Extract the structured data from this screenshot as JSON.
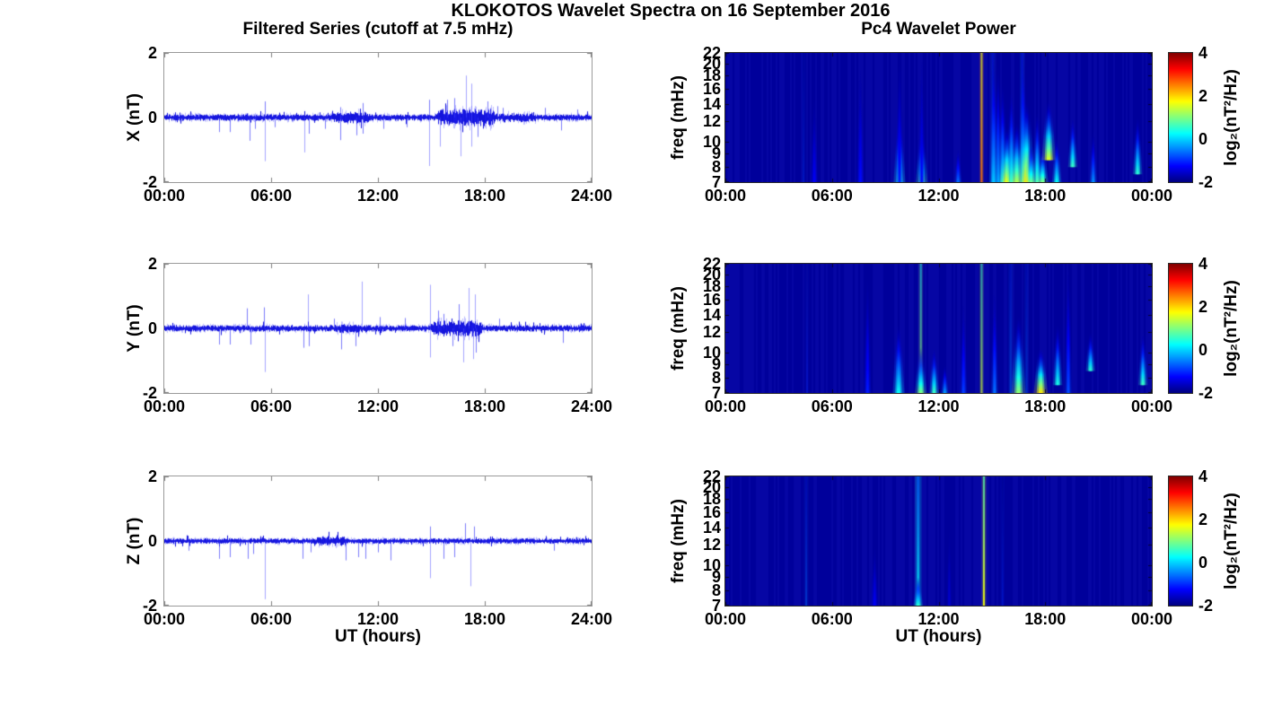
{
  "figure_title": "KLOKOTOS Wavelet Spectra on 16 September 2016",
  "left_column": {
    "title": "Filtered Series (cutoff at 7.5 mHz)",
    "xlabel": "UT (hours)",
    "x_tick_labels": [
      "00:00",
      "06:00",
      "12:00",
      "18:00",
      "24:00"
    ],
    "x_tick_hours": [
      0,
      6,
      12,
      18,
      24
    ],
    "y_tick_labels": [
      "2",
      "0",
      "-2"
    ],
    "y_tick_values": [
      2,
      0,
      -2
    ],
    "rows": [
      {
        "ylabel": "X (nT)"
      },
      {
        "ylabel": "Y (nT)"
      },
      {
        "ylabel": "Z (nT)"
      }
    ]
  },
  "right_column": {
    "title": "Pc4 Wavelet Power",
    "xlabel": "UT (hours)",
    "ylabel": "freq (mHz)",
    "x_tick_labels": [
      "00:00",
      "06:00",
      "12:00",
      "18:00",
      "00:00"
    ],
    "x_tick_hours": [
      0,
      6,
      12,
      18,
      24
    ],
    "freq_tick_labels": [
      "22",
      "20",
      "18",
      "16",
      "14",
      "12",
      "10",
      "9",
      "8",
      "7"
    ],
    "freq_tick_values": [
      22,
      20,
      18,
      16,
      14,
      12,
      10,
      9,
      8,
      7
    ],
    "colorbar": {
      "label": "log₂(nT²/Hz)",
      "tick_labels": [
        "4",
        "2",
        "0",
        "-2"
      ],
      "tick_values": [
        4,
        2,
        0,
        -2
      ],
      "colormap": "jet",
      "clim": [
        -2,
        4
      ]
    }
  },
  "chart_data": [
    {
      "type": "line",
      "series": "X",
      "title": "Filtered Series (cutoff at 7.5 mHz)",
      "ylabel": "X (nT)",
      "line_color": "#0000ff",
      "x_range_hours": [
        0,
        24
      ],
      "y_range_nT": [
        -2,
        2
      ],
      "noise_amp_nT": 0.06,
      "noise_bursts": [
        [
          9.3,
          11.6,
          0.05
        ],
        [
          15.2,
          18.7,
          0.1
        ],
        [
          18.7,
          21.0,
          0.03
        ]
      ],
      "spikes": [
        [
          3.1,
          -0.45
        ],
        [
          3.7,
          -0.45
        ],
        [
          4.8,
          -0.72
        ],
        [
          5.1,
          -0.35
        ],
        [
          5.65,
          -1.35
        ],
        [
          5.65,
          0.5
        ],
        [
          6.2,
          -0.3
        ],
        [
          7.85,
          -1.08
        ],
        [
          8.1,
          -0.5
        ],
        [
          9.0,
          -0.35
        ],
        [
          9.9,
          -0.7
        ],
        [
          9.9,
          0.32
        ],
        [
          10.8,
          -0.55
        ],
        [
          11.15,
          0.45
        ],
        [
          11.15,
          -0.5
        ],
        [
          12.3,
          -0.35
        ],
        [
          13.6,
          -0.3
        ],
        [
          14.85,
          -1.5
        ],
        [
          14.85,
          0.55
        ],
        [
          15.5,
          -0.9
        ],
        [
          15.9,
          0.55
        ],
        [
          16.3,
          0.6
        ],
        [
          16.65,
          -1.2
        ],
        [
          16.95,
          1.3
        ],
        [
          17.25,
          1.05
        ],
        [
          17.25,
          -0.9
        ],
        [
          17.6,
          -0.6
        ],
        [
          18.15,
          0.5
        ],
        [
          18.7,
          0.35
        ],
        [
          19.0,
          0.3
        ],
        [
          21.4,
          0.3
        ],
        [
          22.3,
          -0.4
        ],
        [
          23.2,
          0.25
        ]
      ]
    },
    {
      "type": "line",
      "series": "Y",
      "ylabel": "Y (nT)",
      "line_color": "#0000ff",
      "x_range_hours": [
        0,
        24
      ],
      "y_range_nT": [
        -2,
        2
      ],
      "noise_amp_nT": 0.06,
      "noise_bursts": [
        [
          9.5,
          11.5,
          0.03
        ],
        [
          14.9,
          17.9,
          0.09
        ]
      ],
      "spikes": [
        [
          3.1,
          -0.5
        ],
        [
          3.7,
          -0.5
        ],
        [
          4.65,
          0.62
        ],
        [
          4.85,
          -0.5
        ],
        [
          5.6,
          0.65
        ],
        [
          5.65,
          -1.35
        ],
        [
          7.8,
          -0.6
        ],
        [
          8.05,
          1.05
        ],
        [
          8.1,
          -0.55
        ],
        [
          9.55,
          0.3
        ],
        [
          9.95,
          -0.65
        ],
        [
          10.75,
          -0.55
        ],
        [
          11.1,
          1.45
        ],
        [
          12.1,
          0.35
        ],
        [
          13.5,
          0.32
        ],
        [
          14.9,
          1.35
        ],
        [
          14.9,
          -0.9
        ],
        [
          15.4,
          0.55
        ],
        [
          15.7,
          0.45
        ],
        [
          16.2,
          -0.55
        ],
        [
          16.55,
          0.75
        ],
        [
          16.8,
          -1.05
        ],
        [
          17.1,
          1.25
        ],
        [
          17.35,
          -0.95
        ],
        [
          17.45,
          1.05
        ],
        [
          17.5,
          -0.75
        ],
        [
          18.8,
          0.3
        ],
        [
          22.4,
          -0.45
        ]
      ]
    },
    {
      "type": "line",
      "series": "Z",
      "ylabel": "Z (nT)",
      "xlabel": "UT (hours)",
      "line_color": "#0000ff",
      "x_range_hours": [
        0,
        24
      ],
      "y_range_nT": [
        -2,
        2
      ],
      "noise_amp_nT": 0.05,
      "noise_bursts": [
        [
          8.4,
          10.3,
          0.04
        ]
      ],
      "spikes": [
        [
          1.35,
          -0.3
        ],
        [
          3.1,
          -0.55
        ],
        [
          3.7,
          -0.5
        ],
        [
          4.7,
          -0.55
        ],
        [
          5.0,
          -0.4
        ],
        [
          5.65,
          -1.8
        ],
        [
          7.75,
          -0.55
        ],
        [
          8.2,
          -0.35
        ],
        [
          10.2,
          -0.6
        ],
        [
          10.9,
          -0.5
        ],
        [
          11.3,
          -0.55
        ],
        [
          12.0,
          -0.35
        ],
        [
          12.7,
          -0.6
        ],
        [
          14.9,
          -1.15
        ],
        [
          14.9,
          0.45
        ],
        [
          15.7,
          -0.55
        ],
        [
          16.3,
          -0.5
        ],
        [
          16.9,
          0.55
        ],
        [
          17.2,
          -1.4
        ],
        [
          17.4,
          0.45
        ],
        [
          21.9,
          -0.3
        ]
      ]
    },
    {
      "type": "heatmap",
      "component": "X",
      "title": "Pc4 Wavelet Power",
      "ylabel": "freq (mHz)",
      "freq_range_mHz": [
        7,
        22
      ],
      "freq_scale": "log",
      "x_range_hours": [
        0,
        24
      ],
      "colormap": "jet",
      "clim_log2": [
        -2,
        4
      ],
      "background_log2": -1.8,
      "vertical_lines": [
        [
          4.4,
          -0.9,
          2,
          0.3
        ],
        [
          14.42,
          2.6,
          2,
          0.85
        ],
        [
          15.05,
          -0.4,
          2,
          0.45
        ],
        [
          16.7,
          -0.3,
          2,
          0.5
        ]
      ],
      "plumes": [
        [
          5.0,
          15,
          7,
          -1.3,
          3
        ],
        [
          7.6,
          20,
          7,
          -1.2,
          3
        ],
        [
          9.8,
          12.5,
          7,
          0.4,
          5
        ],
        [
          9.8,
          22,
          7,
          -1.1,
          3
        ],
        [
          11.05,
          11,
          7,
          0.7,
          5
        ],
        [
          11.05,
          22,
          7,
          -1.2,
          3
        ],
        [
          13.1,
          9.5,
          7,
          -0.6,
          3
        ],
        [
          15.1,
          22,
          7,
          -0.1,
          4
        ],
        [
          15.35,
          20,
          7,
          -0.3,
          3
        ],
        [
          15.6,
          17,
          7,
          0.1,
          4
        ],
        [
          15.85,
          11.5,
          7,
          1.7,
          6
        ],
        [
          16.1,
          16,
          7,
          0.5,
          4
        ],
        [
          16.4,
          12,
          7,
          1.3,
          6
        ],
        [
          16.75,
          22,
          7,
          0.2,
          4
        ],
        [
          16.95,
          14.5,
          7,
          1.9,
          7
        ],
        [
          17.2,
          10,
          7,
          0.9,
          5
        ],
        [
          17.55,
          13,
          7,
          0.7,
          4
        ],
        [
          17.85,
          9.5,
          7,
          1.0,
          5
        ],
        [
          18.2,
          14.5,
          8.5,
          1.6,
          6
        ],
        [
          18.65,
          10.5,
          7,
          0.3,
          4
        ],
        [
          19.55,
          12.5,
          8,
          0.6,
          4
        ],
        [
          20.7,
          11,
          7,
          -0.4,
          3
        ],
        [
          23.2,
          12.5,
          7.5,
          0.5,
          4
        ]
      ]
    },
    {
      "type": "heatmap",
      "component": "Y",
      "ylabel": "freq (mHz)",
      "freq_range_mHz": [
        7,
        22
      ],
      "freq_scale": "log",
      "x_range_hours": [
        0,
        24
      ],
      "colormap": "jet",
      "clim_log2": [
        -2,
        4
      ],
      "background_log2": -1.8,
      "vertical_lines": [
        [
          4.6,
          -1.0,
          2,
          0.3
        ],
        [
          11.0,
          1.3,
          2,
          0.6
        ],
        [
          14.42,
          1.5,
          2,
          0.65
        ],
        [
          16.05,
          -0.5,
          2,
          0.4
        ],
        [
          16.95,
          -0.6,
          2,
          0.35
        ]
      ],
      "plumes": [
        [
          8.0,
          20,
          7,
          -1.1,
          3
        ],
        [
          9.75,
          13,
          7,
          0.3,
          5
        ],
        [
          11.0,
          10.5,
          7,
          1.0,
          5
        ],
        [
          11.75,
          10.5,
          7,
          0.6,
          4
        ],
        [
          12.35,
          9,
          7,
          -0.3,
          3
        ],
        [
          13.4,
          16,
          7,
          -0.9,
          3
        ],
        [
          15.15,
          18,
          7,
          -0.6,
          3
        ],
        [
          16.5,
          14,
          7,
          1.1,
          6
        ],
        [
          17.75,
          10.5,
          7,
          1.9,
          6
        ],
        [
          18.7,
          13,
          7.5,
          0.4,
          4
        ],
        [
          19.3,
          22,
          7,
          -0.8,
          3
        ],
        [
          20.55,
          12,
          8.5,
          0.5,
          4
        ],
        [
          23.5,
          12,
          7.5,
          0.6,
          4
        ]
      ]
    },
    {
      "type": "heatmap",
      "component": "Z",
      "ylabel": "freq (mHz)",
      "xlabel": "UT (hours)",
      "freq_range_mHz": [
        7,
        22
      ],
      "freq_scale": "log",
      "x_range_hours": [
        0,
        24
      ],
      "colormap": "jet",
      "clim_log2": [
        -2,
        4
      ],
      "background_log2": -1.8,
      "vertical_lines": [
        [
          4.55,
          -0.6,
          2,
          0.4
        ],
        [
          10.85,
          0.3,
          3,
          0.8
        ],
        [
          14.55,
          1.7,
          2,
          0.9
        ],
        [
          15.6,
          -1.0,
          2,
          0.35
        ]
      ],
      "plumes": [
        [
          8.4,
          12,
          7,
          -1.3,
          3
        ],
        [
          10.85,
          9,
          7,
          0.5,
          4
        ],
        [
          12.6,
          14,
          7,
          -1.5,
          2
        ]
      ]
    }
  ]
}
